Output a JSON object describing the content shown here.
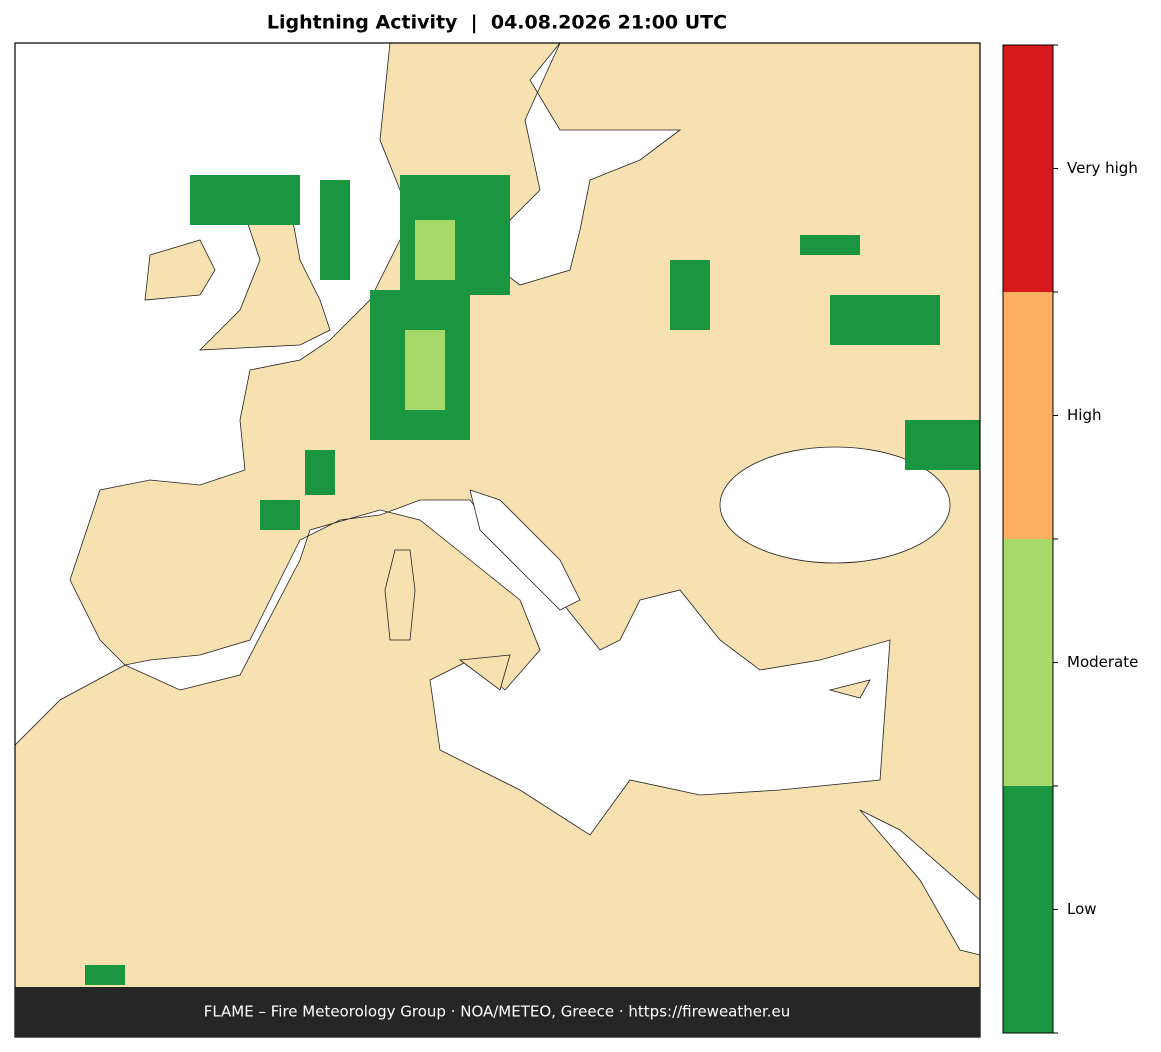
{
  "title": "Lightning Activity  |  04.08.2026 21:00 UTC",
  "footer": "FLAME – Fire Meteorology Group · NOA/METEO, Greece · https://fireweather.eu",
  "legend": {
    "levels": [
      {
        "label": "Low",
        "color": "#1a9641"
      },
      {
        "label": "Moderate",
        "color": "#a6d96a"
      },
      {
        "label": "High",
        "color": "#fdae61"
      },
      {
        "label": "Very high",
        "color": "#d7191c"
      }
    ]
  }
}
